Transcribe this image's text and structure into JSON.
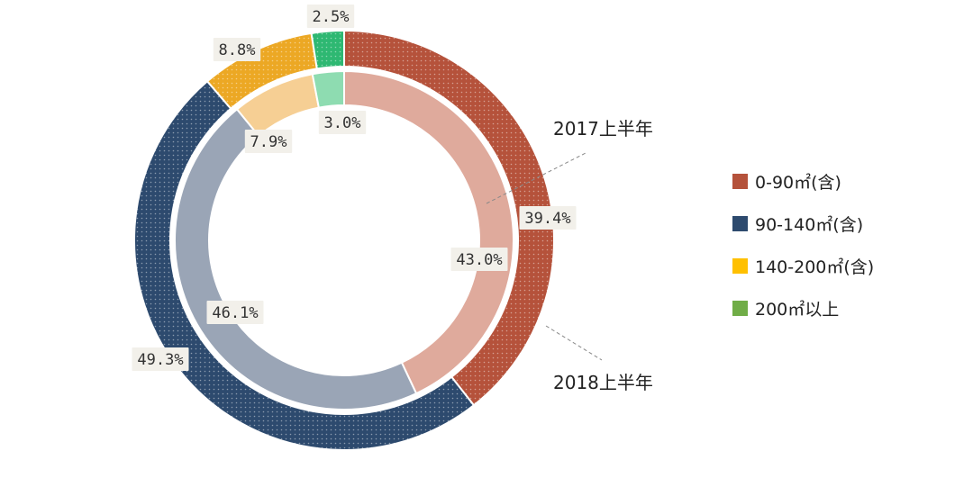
{
  "chart_data": {
    "type": "pie",
    "subtype": "nested-donut",
    "title": "",
    "categories": [
      "0-90㎡(含)",
      "90-140㎡(含)",
      "140-200㎡(含)",
      "200㎡以上"
    ],
    "series": [
      {
        "name": "2018上半年",
        "ring": "outer",
        "values": [
          39.4,
          49.3,
          8.8,
          2.5
        ],
        "labels": [
          "39.4%",
          "49.3%",
          "8.8%",
          "2.5%"
        ],
        "colors": [
          "#b5523b",
          "#2d4a6e",
          "#eca824",
          "#2eb872"
        ]
      },
      {
        "name": "2017上半年",
        "ring": "inner",
        "values": [
          43.0,
          46.1,
          7.9,
          3.0
        ],
        "labels": [
          "43.0%",
          "46.1%",
          "7.9%",
          "3.0%"
        ],
        "colors": [
          "#dfaa9c",
          "#9aa5b6",
          "#f6cf94",
          "#8edcb1"
        ]
      }
    ],
    "legend": {
      "position": "right",
      "colors": [
        "#b5523b",
        "#2d4a6e",
        "#ffc000",
        "#70ad47"
      ]
    },
    "grid": false
  }
}
